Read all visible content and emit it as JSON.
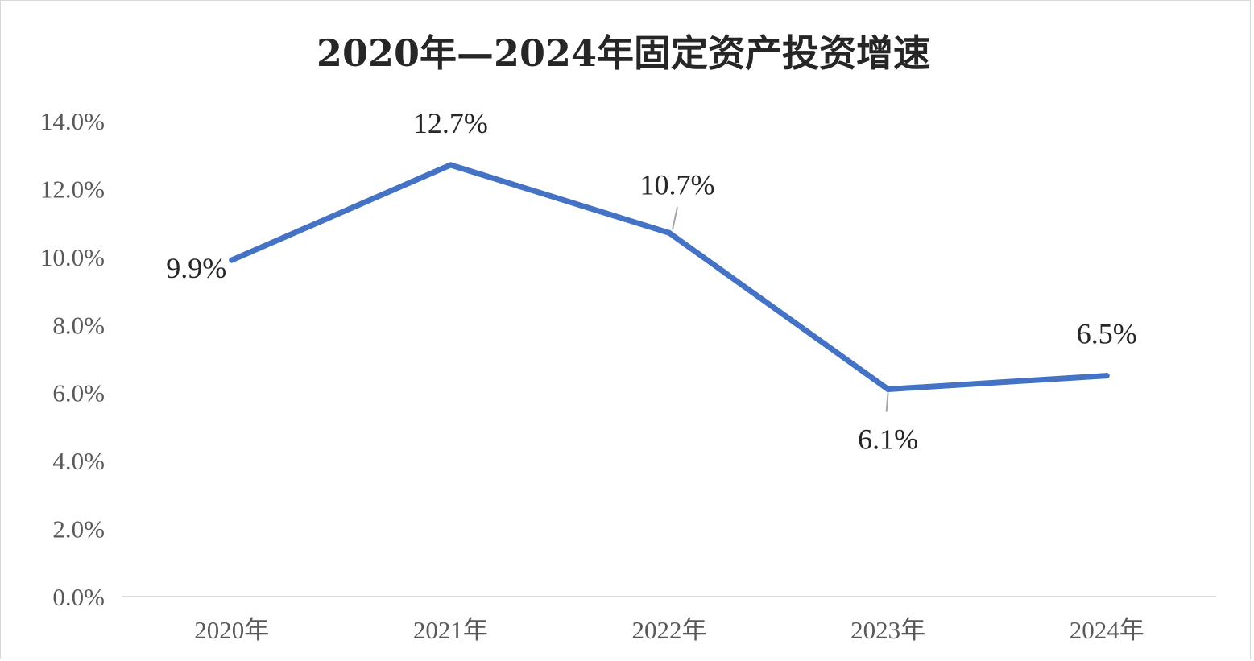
{
  "chart_data": {
    "type": "line",
    "title": "2020年—2024年固定资产投资增速",
    "categories": [
      "2020年",
      "2021年",
      "2022年",
      "2023年",
      "2024年"
    ],
    "series": [
      {
        "values": [
          9.9,
          12.7,
          10.7,
          6.1,
          6.5
        ],
        "color": "#4472C4"
      }
    ],
    "data_labels": [
      "9.9%",
      "12.7%",
      "10.7%",
      "6.1%",
      "6.5%"
    ],
    "y_ticks": [
      "0.0%",
      "2.0%",
      "4.0%",
      "6.0%",
      "8.0%",
      "10.0%",
      "12.0%",
      "14.0%"
    ],
    "ylim": [
      0,
      14
    ],
    "grid": false,
    "legend": "none"
  }
}
